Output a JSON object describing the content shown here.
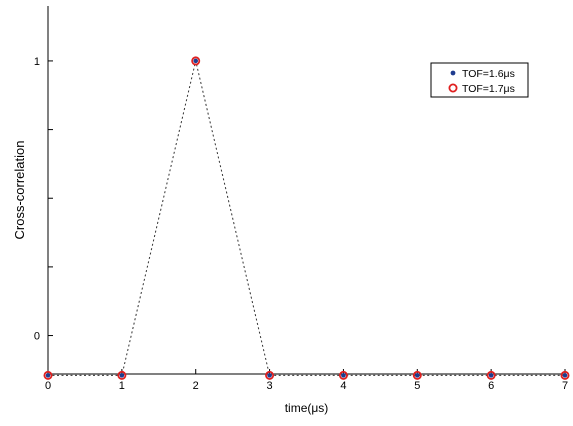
{
  "chart_data": {
    "type": "scatter",
    "title": "",
    "xlabel": "time(μs)",
    "ylabel": "Cross-correlation",
    "xlim": [
      0,
      7
    ],
    "ylim": [
      -0.14,
      1.2
    ],
    "x_ticks": [
      0,
      1,
      2,
      3,
      4,
      5,
      6,
      7
    ],
    "x_tick_labels": [
      "0",
      "1",
      "2",
      "3",
      "4",
      "5",
      "6",
      "7"
    ],
    "y_ticks": [
      0,
      1
    ],
    "y_tick_labels": [
      "0",
      "1"
    ],
    "grid": false,
    "legend_position": "top-right",
    "x": [
      0,
      1,
      2,
      3,
      4,
      5,
      6,
      7
    ],
    "series": [
      {
        "name": "TOF=1.6μs",
        "marker": "filled-dot",
        "color": "#1f3c8f",
        "values": [
          -0.145,
          -0.145,
          1,
          -0.145,
          -0.145,
          -0.145,
          -0.145,
          -0.145
        ]
      },
      {
        "name": "TOF=1.7μs",
        "marker": "open-circle",
        "color": "#e02020",
        "values": [
          -0.145,
          -0.145,
          1,
          -0.145,
          -0.145,
          -0.145,
          -0.145,
          -0.145
        ]
      }
    ],
    "connecting_line": {
      "style": "dotted",
      "color": "#333333"
    }
  }
}
